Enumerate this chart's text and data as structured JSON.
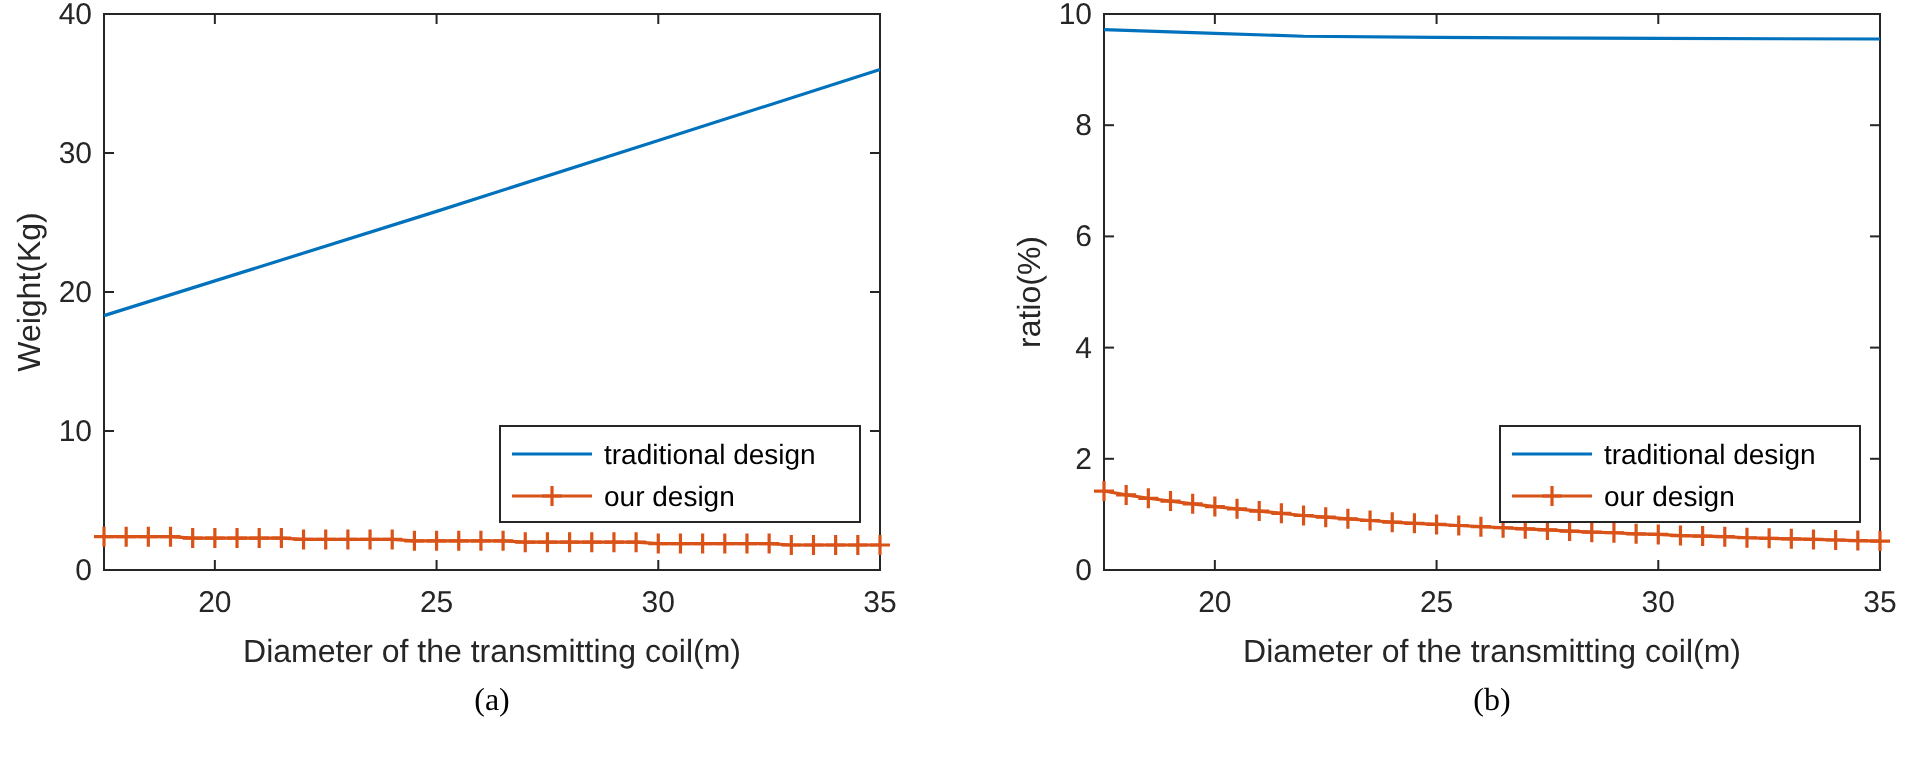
{
  "chart_data": [
    {
      "type": "line",
      "xlabel": "Diameter of the transmitting coil(m)",
      "ylabel": "Weight(Kg)",
      "annotations": [
        "(a)"
      ],
      "xlim": [
        17.5,
        35
      ],
      "xticks": [
        20,
        25,
        30,
        35
      ],
      "ylim": [
        0,
        40
      ],
      "yticks": [
        0,
        10,
        20,
        30,
        40
      ],
      "grid": false,
      "legend": "bottom right",
      "series": [
        {
          "name": "traditional design",
          "color": "#0072bd",
          "marker": "none",
          "x": [
            17.5,
            20,
            25,
            30,
            35
          ],
          "values": [
            18.3,
            20.8,
            25.8,
            30.9,
            36.0
          ]
        },
        {
          "name": "our design",
          "color": "#d95319",
          "marker": "cross",
          "x": [
            17.5,
            18,
            18.5,
            19,
            19.5,
            20,
            20.5,
            21,
            21.5,
            22,
            22.5,
            23,
            23.5,
            24,
            24.5,
            25,
            25.5,
            26,
            26.5,
            27,
            27.5,
            28,
            28.5,
            29,
            29.5,
            30,
            30.5,
            31,
            31.5,
            32,
            32.5,
            33,
            33.5,
            34,
            34.5,
            35
          ],
          "values": [
            2.4,
            2.4,
            2.4,
            2.4,
            2.3,
            2.3,
            2.3,
            2.3,
            2.3,
            2.2,
            2.2,
            2.2,
            2.2,
            2.2,
            2.1,
            2.1,
            2.1,
            2.1,
            2.1,
            2.0,
            2.0,
            2.0,
            2.0,
            2.0,
            2.0,
            1.9,
            1.9,
            1.9,
            1.9,
            1.9,
            1.9,
            1.8,
            1.8,
            1.8,
            1.8,
            1.8
          ]
        }
      ]
    },
    {
      "type": "line",
      "xlabel": "Diameter of the transmitting coil(m)",
      "ylabel": "ratio(%)",
      "annotations": [
        "(b)"
      ],
      "xlim": [
        17.5,
        35
      ],
      "xticks": [
        20,
        25,
        30,
        35
      ],
      "ylim": [
        0,
        10
      ],
      "yticks": [
        0,
        2,
        4,
        6,
        8,
        10
      ],
      "grid": false,
      "legend": "bottom right",
      "series": [
        {
          "name": "traditional design",
          "color": "#0072bd",
          "marker": "none",
          "x": [
            17.5,
            20,
            22,
            25,
            30,
            35
          ],
          "values": [
            9.72,
            9.65,
            9.6,
            9.58,
            9.56,
            9.55
          ]
        },
        {
          "name": "our design",
          "color": "#d95319",
          "marker": "cross",
          "x": [
            17.5,
            18,
            18.5,
            19,
            19.5,
            20,
            20.5,
            21,
            21.5,
            22,
            22.5,
            23,
            23.5,
            24,
            24.5,
            25,
            25.5,
            26,
            26.5,
            27,
            27.5,
            28,
            28.5,
            29,
            29.5,
            30,
            30.5,
            31,
            31.5,
            32,
            32.5,
            33,
            33.5,
            34,
            34.5,
            35
          ],
          "values": [
            1.42,
            1.35,
            1.29,
            1.24,
            1.19,
            1.14,
            1.1,
            1.06,
            1.02,
            0.98,
            0.95,
            0.92,
            0.89,
            0.86,
            0.84,
            0.82,
            0.8,
            0.78,
            0.76,
            0.74,
            0.72,
            0.7,
            0.68,
            0.67,
            0.65,
            0.64,
            0.62,
            0.61,
            0.6,
            0.58,
            0.57,
            0.56,
            0.55,
            0.54,
            0.53,
            0.52
          ]
        }
      ]
    }
  ]
}
